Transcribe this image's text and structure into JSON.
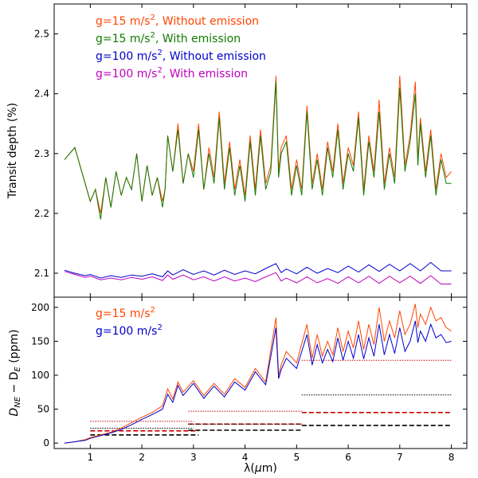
{
  "chart_data": [
    {
      "type": "line",
      "title": "",
      "xlabel": "",
      "ylabel": "Transit depth (%)",
      "xlim": [
        0.3,
        8.3
      ],
      "ylim": [
        2.06,
        2.55
      ],
      "yticks": [
        2.1,
        2.2,
        2.3,
        2.4,
        2.5
      ],
      "ytick_labels": [
        "2.1",
        "2.2",
        "2.3",
        "2.4",
        "2.5"
      ],
      "grid": false,
      "legend_position": "top-left",
      "series": [
        {
          "name": "g=15 m/s², Without emission",
          "legend_main": "g=15 m/s",
          "legend_sup": "2",
          "legend_rest": ", Without emission",
          "color": "#ff4500",
          "x": [
            0.5,
            0.7,
            0.9,
            1.0,
            1.1,
            1.2,
            1.3,
            1.4,
            1.5,
            1.6,
            1.7,
            1.8,
            1.9,
            2.0,
            2.1,
            2.2,
            2.3,
            2.4,
            2.45,
            2.5,
            2.6,
            2.7,
            2.8,
            2.9,
            3.0,
            3.1,
            3.2,
            3.3,
            3.4,
            3.5,
            3.6,
            3.7,
            3.8,
            3.9,
            4.0,
            4.1,
            4.2,
            4.3,
            4.4,
            4.5,
            4.6,
            4.65,
            4.7,
            4.8,
            4.9,
            5.0,
            5.1,
            5.2,
            5.3,
            5.4,
            5.5,
            5.6,
            5.7,
            5.8,
            5.9,
            6.0,
            6.1,
            6.2,
            6.3,
            6.4,
            6.5,
            6.6,
            6.7,
            6.8,
            6.9,
            7.0,
            7.1,
            7.2,
            7.3,
            7.35,
            7.4,
            7.5,
            7.6,
            7.7,
            7.8,
            7.9,
            8.0
          ],
          "y": [
            2.29,
            2.31,
            2.25,
            2.22,
            2.24,
            2.2,
            2.26,
            2.21,
            2.27,
            2.23,
            2.26,
            2.24,
            2.3,
            2.22,
            2.28,
            2.23,
            2.26,
            2.22,
            2.24,
            2.33,
            2.27,
            2.35,
            2.25,
            2.3,
            2.27,
            2.35,
            2.24,
            2.31,
            2.26,
            2.37,
            2.25,
            2.32,
            2.24,
            2.29,
            2.23,
            2.33,
            2.24,
            2.34,
            2.25,
            2.28,
            2.43,
            2.27,
            2.31,
            2.33,
            2.24,
            2.29,
            2.24,
            2.38,
            2.25,
            2.3,
            2.24,
            2.32,
            2.27,
            2.35,
            2.25,
            2.31,
            2.28,
            2.37,
            2.24,
            2.33,
            2.27,
            2.39,
            2.25,
            2.31,
            2.26,
            2.43,
            2.28,
            2.33,
            2.42,
            2.29,
            2.36,
            2.27,
            2.34,
            2.24,
            2.3,
            2.26,
            2.27
          ]
        },
        {
          "name": "g=15 m/s², With emission",
          "legend_main": "g=15 m/s",
          "legend_sup": "2",
          "legend_rest": ", With emission",
          "color": "#117a00",
          "x": [
            0.5,
            0.7,
            0.9,
            1.0,
            1.1,
            1.2,
            1.3,
            1.4,
            1.5,
            1.6,
            1.7,
            1.8,
            1.9,
            2.0,
            2.1,
            2.2,
            2.3,
            2.4,
            2.45,
            2.5,
            2.6,
            2.7,
            2.8,
            2.9,
            3.0,
            3.1,
            3.2,
            3.3,
            3.4,
            3.5,
            3.6,
            3.7,
            3.8,
            3.9,
            4.0,
            4.1,
            4.2,
            4.3,
            4.4,
            4.5,
            4.6,
            4.65,
            4.7,
            4.8,
            4.9,
            5.0,
            5.1,
            5.2,
            5.3,
            5.4,
            5.5,
            5.6,
            5.7,
            5.8,
            5.9,
            6.0,
            6.1,
            6.2,
            6.3,
            6.4,
            6.5,
            6.6,
            6.7,
            6.8,
            6.9,
            7.0,
            7.1,
            7.2,
            7.3,
            7.35,
            7.4,
            7.5,
            7.6,
            7.7,
            7.8,
            7.9,
            8.0
          ],
          "y": [
            2.29,
            2.31,
            2.25,
            2.22,
            2.24,
            2.19,
            2.26,
            2.21,
            2.27,
            2.23,
            2.26,
            2.24,
            2.3,
            2.22,
            2.28,
            2.23,
            2.26,
            2.21,
            2.24,
            2.33,
            2.27,
            2.34,
            2.25,
            2.3,
            2.26,
            2.34,
            2.24,
            2.3,
            2.25,
            2.36,
            2.24,
            2.31,
            2.23,
            2.28,
            2.22,
            2.32,
            2.23,
            2.33,
            2.24,
            2.27,
            2.42,
            2.26,
            2.3,
            2.32,
            2.23,
            2.28,
            2.23,
            2.37,
            2.24,
            2.29,
            2.23,
            2.31,
            2.26,
            2.34,
            2.24,
            2.3,
            2.27,
            2.36,
            2.23,
            2.32,
            2.26,
            2.37,
            2.24,
            2.3,
            2.25,
            2.41,
            2.27,
            2.32,
            2.4,
            2.28,
            2.35,
            2.26,
            2.33,
            2.23,
            2.29,
            2.25,
            2.25
          ]
        },
        {
          "name": "g=100 m/s², Without emission",
          "legend_main": "g=100 m/s",
          "legend_sup": "2",
          "legend_rest": ", Without emission",
          "color": "#0000cc",
          "x": [
            0.5,
            0.7,
            0.9,
            1.0,
            1.2,
            1.4,
            1.6,
            1.8,
            2.0,
            2.2,
            2.4,
            2.5,
            2.6,
            2.8,
            3.0,
            3.2,
            3.4,
            3.6,
            3.8,
            4.0,
            4.2,
            4.4,
            4.6,
            4.7,
            4.8,
            5.0,
            5.2,
            5.4,
            5.6,
            5.8,
            6.0,
            6.2,
            6.4,
            6.6,
            6.8,
            7.0,
            7.2,
            7.4,
            7.6,
            7.8,
            8.0
          ],
          "y": [
            2.105,
            2.1,
            2.096,
            2.098,
            2.092,
            2.096,
            2.093,
            2.097,
            2.095,
            2.099,
            2.094,
            2.104,
            2.097,
            2.106,
            2.098,
            2.104,
            2.097,
            2.105,
            2.098,
            2.104,
            2.099,
            2.108,
            2.116,
            2.101,
            2.107,
            2.099,
            2.11,
            2.1,
            2.108,
            2.101,
            2.112,
            2.102,
            2.114,
            2.103,
            2.115,
            2.104,
            2.116,
            2.104,
            2.118,
            2.104,
            2.104
          ]
        },
        {
          "name": "g=100 m/s², With emission",
          "legend_main": "g=100 m/s",
          "legend_sup": "2",
          "legend_rest": ", With emission",
          "color": "#bf00bf",
          "x": [
            0.5,
            0.7,
            0.9,
            1.0,
            1.2,
            1.4,
            1.6,
            1.8,
            2.0,
            2.2,
            2.4,
            2.5,
            2.6,
            2.8,
            3.0,
            3.2,
            3.4,
            3.6,
            3.8,
            4.0,
            4.2,
            4.4,
            4.6,
            4.7,
            4.8,
            5.0,
            5.2,
            5.4,
            5.6,
            5.8,
            6.0,
            6.2,
            6.4,
            6.6,
            6.8,
            7.0,
            7.2,
            7.4,
            7.6,
            7.8,
            8.0
          ],
          "y": [
            2.103,
            2.098,
            2.093,
            2.095,
            2.089,
            2.092,
            2.089,
            2.093,
            2.09,
            2.094,
            2.088,
            2.097,
            2.09,
            2.097,
            2.089,
            2.094,
            2.087,
            2.094,
            2.087,
            2.092,
            2.086,
            2.094,
            2.101,
            2.087,
            2.092,
            2.084,
            2.094,
            2.084,
            2.091,
            2.083,
            2.094,
            2.084,
            2.095,
            2.083,
            2.095,
            2.084,
            2.095,
            2.083,
            2.096,
            2.082,
            2.082
          ]
        }
      ]
    },
    {
      "type": "line",
      "title": "",
      "xlabel_main": "λ(",
      "xlabel_mu": "μ",
      "xlabel_unit": "m)",
      "ylabel_main": "D",
      "ylabel_sub1": "NE",
      "ylabel_mid": " − D",
      "ylabel_sub2": "E",
      "ylabel_unit": " (ppm)",
      "xlim": [
        0.3,
        8.3
      ],
      "ylim": [
        -8,
        215
      ],
      "xticks": [
        1,
        2,
        3,
        4,
        5,
        6,
        7,
        8
      ],
      "xtick_labels": [
        "1",
        "2",
        "3",
        "4",
        "5",
        "6",
        "7",
        "8"
      ],
      "yticks": [
        0,
        50,
        100,
        150,
        200
      ],
      "ytick_labels": [
        "0",
        "50",
        "100",
        "150",
        "200"
      ],
      "grid": false,
      "legend_position": "top-left",
      "series": [
        {
          "name": "g=15 m/s²",
          "legend_main": "g=15 m/s",
          "legend_sup": "2",
          "color": "#ff4500",
          "x": [
            0.5,
            0.7,
            0.9,
            1.0,
            1.2,
            1.4,
            1.6,
            1.8,
            2.0,
            2.2,
            2.4,
            2.5,
            2.6,
            2.7,
            2.8,
            3.0,
            3.2,
            3.4,
            3.6,
            3.8,
            4.0,
            4.2,
            4.4,
            4.6,
            4.65,
            4.7,
            4.8,
            5.0,
            5.2,
            5.3,
            5.4,
            5.5,
            5.6,
            5.7,
            5.8,
            5.9,
            6.0,
            6.1,
            6.2,
            6.3,
            6.4,
            6.5,
            6.6,
            6.7,
            6.8,
            6.9,
            7.0,
            7.1,
            7.2,
            7.3,
            7.35,
            7.4,
            7.5,
            7.6,
            7.7,
            7.8,
            7.9,
            8.0
          ],
          "y": [
            0,
            2,
            5,
            8,
            12,
            16,
            22,
            30,
            38,
            45,
            55,
            80,
            65,
            90,
            75,
            92,
            70,
            88,
            72,
            95,
            82,
            110,
            90,
            185,
            100,
            115,
            135,
            118,
            175,
            125,
            160,
            128,
            150,
            130,
            170,
            135,
            165,
            140,
            180,
            138,
            175,
            145,
            200,
            150,
            180,
            155,
            195,
            160,
            175,
            205,
            170,
            190,
            175,
            200,
            180,
            185,
            170,
            165
          ]
        },
        {
          "name": "g=100 m/s²",
          "legend_main": "g=100 m/s",
          "legend_sup": "2",
          "color": "#0000cc",
          "x": [
            0.5,
            0.7,
            0.9,
            1.0,
            1.2,
            1.4,
            1.6,
            1.8,
            2.0,
            2.2,
            2.4,
            2.5,
            2.6,
            2.7,
            2.8,
            3.0,
            3.2,
            3.4,
            3.6,
            3.8,
            4.0,
            4.2,
            4.4,
            4.6,
            4.65,
            4.7,
            4.8,
            5.0,
            5.2,
            5.3,
            5.4,
            5.5,
            5.6,
            5.7,
            5.8,
            5.9,
            6.0,
            6.1,
            6.2,
            6.3,
            6.4,
            6.5,
            6.6,
            6.7,
            6.8,
            6.9,
            7.0,
            7.1,
            7.2,
            7.3,
            7.35,
            7.4,
            7.5,
            7.6,
            7.7,
            7.8,
            7.9,
            8.0
          ],
          "y": [
            0,
            2,
            4,
            7,
            11,
            15,
            20,
            27,
            35,
            42,
            50,
            72,
            60,
            85,
            70,
            88,
            66,
            84,
            68,
            90,
            78,
            105,
            86,
            170,
            95,
            108,
            125,
            110,
            160,
            115,
            145,
            118,
            138,
            120,
            155,
            122,
            150,
            125,
            160,
            124,
            155,
            128,
            175,
            130,
            160,
            132,
            170,
            135,
            150,
            180,
            148,
            165,
            150,
            175,
            155,
            160,
            148,
            150
          ]
        }
      ],
      "reference_lines": [
        {
          "x": [
            1.0,
            3.0
          ],
          "y": 32,
          "color": "#cc0000",
          "style": "dotted"
        },
        {
          "x": [
            2.9,
            5.1
          ],
          "y": 47,
          "color": "#cc0000",
          "style": "dotted"
        },
        {
          "x": [
            5.1,
            8.0
          ],
          "y": 122,
          "color": "#cc0000",
          "style": "dotted"
        },
        {
          "x": [
            1.0,
            3.1
          ],
          "y": 18,
          "color": "#cc0000",
          "style": "dashed"
        },
        {
          "x": [
            2.9,
            5.1
          ],
          "y": 28,
          "color": "#cc0000",
          "style": "dashed"
        },
        {
          "x": [
            5.1,
            8.0
          ],
          "y": 45,
          "color": "#cc0000",
          "style": "dashed"
        },
        {
          "x": [
            1.0,
            3.0
          ],
          "y": 22,
          "color": "#000000",
          "style": "dotted"
        },
        {
          "x": [
            2.9,
            5.1
          ],
          "y": 28,
          "color": "#000000",
          "style": "dotted"
        },
        {
          "x": [
            5.1,
            8.0
          ],
          "y": 71,
          "color": "#000000",
          "style": "dotted"
        },
        {
          "x": [
            1.0,
            3.1
          ],
          "y": 12,
          "color": "#000000",
          "style": "dashed"
        },
        {
          "x": [
            2.9,
            5.1
          ],
          "y": 19,
          "color": "#000000",
          "style": "dashed"
        },
        {
          "x": [
            5.1,
            8.0
          ],
          "y": 26,
          "color": "#000000",
          "style": "dashed"
        }
      ]
    }
  ]
}
